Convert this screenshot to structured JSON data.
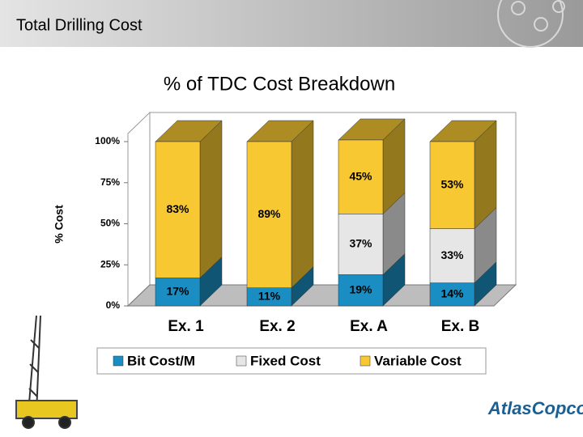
{
  "header": {
    "title": "Total Drilling Cost"
  },
  "logo": "AtlasCopco",
  "chart_data": {
    "type": "bar",
    "stacked": true,
    "title": "% of TDC Cost Breakdown",
    "y_label": "% Cost",
    "categories": [
      "Ex. 1",
      "Ex. 2",
      "Ex. A",
      "Ex. B"
    ],
    "series": [
      {
        "name": "Bit Cost/M",
        "color": "#1a8ec2",
        "values": [
          17,
          11,
          19,
          14
        ],
        "value_labels": [
          "17%",
          "11%",
          "19%",
          "14%"
        ]
      },
      {
        "name": "Fixed Cost",
        "color": "#e6e6e6",
        "values": [
          null,
          null,
          37,
          33
        ],
        "value_labels": [
          null,
          null,
          "37%",
          "33%"
        ]
      },
      {
        "name": "Variable Cost",
        "color": "#f7c832",
        "values": [
          83,
          89,
          45,
          53
        ],
        "value_labels": [
          "83%",
          "89%",
          "45%",
          "53%"
        ]
      }
    ],
    "ylim": [
      0,
      100
    ],
    "yticks": [
      {
        "value": 0,
        "label": "0%"
      },
      {
        "value": 25,
        "label": "25%"
      },
      {
        "value": 50,
        "label": "50%"
      },
      {
        "value": 75,
        "label": "75%"
      },
      {
        "value": 100,
        "label": "100%"
      }
    ],
    "legend": "bottom"
  }
}
